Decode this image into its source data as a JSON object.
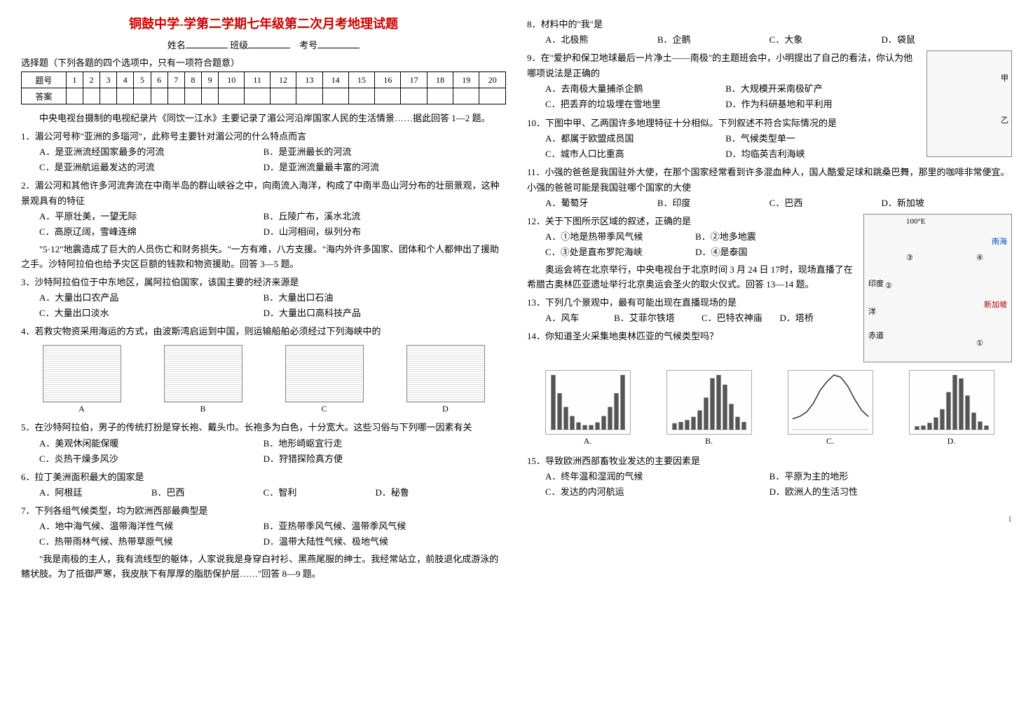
{
  "title": "铜鼓中学-学第二学期七年级第二次月考地理试题",
  "header": {
    "name_label": "姓名",
    "class_label": "班级",
    "exam_no_label": "考号"
  },
  "select_instr": "选择题（下列各题的四个选项中，只有一项符合题意）",
  "grid": {
    "row1_label": "题号",
    "row2_label": "答案",
    "cols": [
      "1",
      "2",
      "3",
      "4",
      "5",
      "6",
      "7",
      "8",
      "9",
      "10",
      "11",
      "12",
      "13",
      "14",
      "15",
      "16",
      "17",
      "18",
      "19",
      "20"
    ]
  },
  "intro_para": "中央电视台摄制的电视纪录片《同饮一江水》主要记录了湄公河沿岸国家人民的生活情景……据此回答 1—2 题。",
  "q1": {
    "stem": "1．湄公河号称\"亚洲的多瑙河\"，此称号主要针对湄公河的什么特点而言",
    "A": "A．是亚洲流经国家最多的河流",
    "B": "B．是亚洲最长的河流",
    "C": "C．是亚洲航运最发达的河流",
    "D": "D．是亚洲流量最丰富的河流"
  },
  "q2": {
    "stem": "2．湄公河和其他许多河流奔流在中南半岛的群山峡谷之中，向南流入海洋，构成了中南半岛山河分布的壮丽景观，这种景观具有的特征",
    "A": "A．平原壮美，一望无际",
    "B": "B．丘陵广布，溪水北流",
    "C": "C．高原辽阔，雪峰连绵",
    "D": "D．山河相间，纵列分布"
  },
  "para_3_5": "\"5·12\"地震造成了巨大的人员伤亡和财务损失。\"一方有难，八方支援。\"海内外许多国家、团体和个人都伸出了援助之手。沙特阿拉伯也给予灾区巨额的钱款和物资援助。回答 3—5 题。",
  "q3": {
    "stem": "3．沙特阿拉伯位于中东地区，属阿拉伯国家，该国主要的经济来源是",
    "A": "A．大量出口农产品",
    "B": "B．大量出口石油",
    "C": "C．大量出口淡水",
    "D": "D．大量出口高科技产品"
  },
  "q4": {
    "stem": "4．若救灾物资采用海运的方式，由波斯湾启运到中国，则运输船舶必须经过下列海峡中的",
    "caps": [
      "A",
      "B",
      "C",
      "D"
    ]
  },
  "q5": {
    "stem": "5．在沙特阿拉伯，男子的传统打扮是穿长袍、戴头巾。长袍多为白色，十分宽大。这些习俗与下列哪一因素有关",
    "A": "A．美观休闲能保暖",
    "B": "B．地形崎岖宜行走",
    "C": "C．炎热干燥多风沙",
    "D": "D．狩猎探险真方便"
  },
  "q6": {
    "stem": "6．拉丁美洲面积最大的国家是",
    "A": "A．阿根廷",
    "B": "B．巴西",
    "C": "C．智利",
    "D": "D．秘鲁"
  },
  "q7": {
    "stem": "7．下列各组气候类型，均为欧洲西部最典型是",
    "A": "A．地中海气候、温带海洋性气候",
    "B": "B．亚热带季风气候、温带季风气候",
    "C": "C．热带雨林气候、热带草原气候",
    "D": "D．温带大陆性气候、极地气候"
  },
  "para_8_9": "\"我是南极的主人，我有流线型的躯体，人家说我是身穿白衬衫、黑燕尾服的绅士。我经常站立，前肢退化成游泳的鳍状肢。为了抵御严寒，我皮肤下有厚厚的脂肪保护层……\"回答 8—9 题。",
  "q8": {
    "stem": "8．材料中的\"我\"是",
    "A": "A．北极熊",
    "B": "B．企鹅",
    "C": "C．大象",
    "D": "D．袋鼠"
  },
  "q9": {
    "stem": "9．在\"爱护和保卫地球最后一片净土——南极\"的主题班会中，小明提出了自己的看法，你认为他哪项说法是正确的",
    "A": "A．去南极大量捕杀企鹅",
    "B": "B．大规模开采南极矿产",
    "C": "C．把丢弃的垃圾埋在雪地里",
    "D": "D．作为科研基地和平利用"
  },
  "q10": {
    "stem": "10．下图中甲、乙两国许多地理特征十分相似。下列叙述不符合实际情况的是",
    "A": "A．都属于欧盟成员国",
    "B": "B．气候类型单一",
    "C": "C．城市人口比重高",
    "D": "D．均临英吉利海峡"
  },
  "q11": {
    "stem": "11．小强的爸爸是我国驻外大使，在那个国家经常看到许多混血种人，国人酷爱足球和跳桑巴舞，那里的咖啡非常便宜。小强的爸爸可能是我国驻哪个国家的大使",
    "A": "A．葡萄牙",
    "B": "B．印度",
    "C": "C．巴西",
    "D": "D．新加坡"
  },
  "q12": {
    "stem": "12．关于下图所示区域的叙述，正确的是",
    "A": "A．①地是热带季风气候",
    "B": "B．②地多地震",
    "C": "C．③处是直布罗陀海峡",
    "D": "D．④是泰国"
  },
  "para_13_14": "奥运会将在北京举行，中央电视台于北京时间 3 月 24 日 17时，现场直播了在希腊古奥林匹亚遗址举行北京奥运会圣火的取火仪式。回答 13—14 题。",
  "q13": {
    "stem": "13．下列几个景观中，最有可能出现在直播现场的是",
    "A": "A．风车",
    "B": "B．艾菲尔铁塔",
    "C": "C．巴特农神庙",
    "D": "D．塔桥"
  },
  "q14": {
    "stem": "14．你知道圣火采集地奥林匹亚的气候类型吗？"
  },
  "charts": {
    "caps": [
      "A.",
      "B.",
      "C.",
      "D."
    ],
    "background": "#fefefe",
    "border": "#aaa",
    "bar_color": "#555",
    "line_color": "#333",
    "A": {
      "type": "bar",
      "values": [
        60,
        40,
        25,
        15,
        8,
        5,
        5,
        8,
        15,
        25,
        40,
        60
      ]
    },
    "B": {
      "type": "bar",
      "values": [
        10,
        12,
        15,
        20,
        30,
        50,
        80,
        85,
        70,
        40,
        20,
        12
      ]
    },
    "C": {
      "type": "line",
      "values": [
        5,
        6,
        8,
        12,
        18,
        22,
        25,
        24,
        20,
        14,
        9,
        6
      ]
    },
    "D": {
      "type": "bar",
      "values": [
        5,
        6,
        10,
        18,
        30,
        55,
        80,
        75,
        50,
        25,
        12,
        6
      ]
    }
  },
  "q15": {
    "stem": "15．导致欧洲西部畜牧业发达的主要因素是",
    "A": "A．终年温和湿润的气候",
    "B": "B．平原为主的地形",
    "C": "C．发达的内河航运",
    "D": "D．欧洲人的生活习性"
  },
  "map1_labels": {
    "jia": "甲",
    "yi": "乙"
  },
  "map2_labels": {
    "lon": "100°E",
    "nanhai": "南海",
    "yin": "印度",
    "yang": "洋",
    "chidao": "赤道",
    "xjp": "新加坡",
    "n1": "①",
    "n2": "②",
    "n3": "③",
    "n4": "④"
  },
  "page_num": "1"
}
